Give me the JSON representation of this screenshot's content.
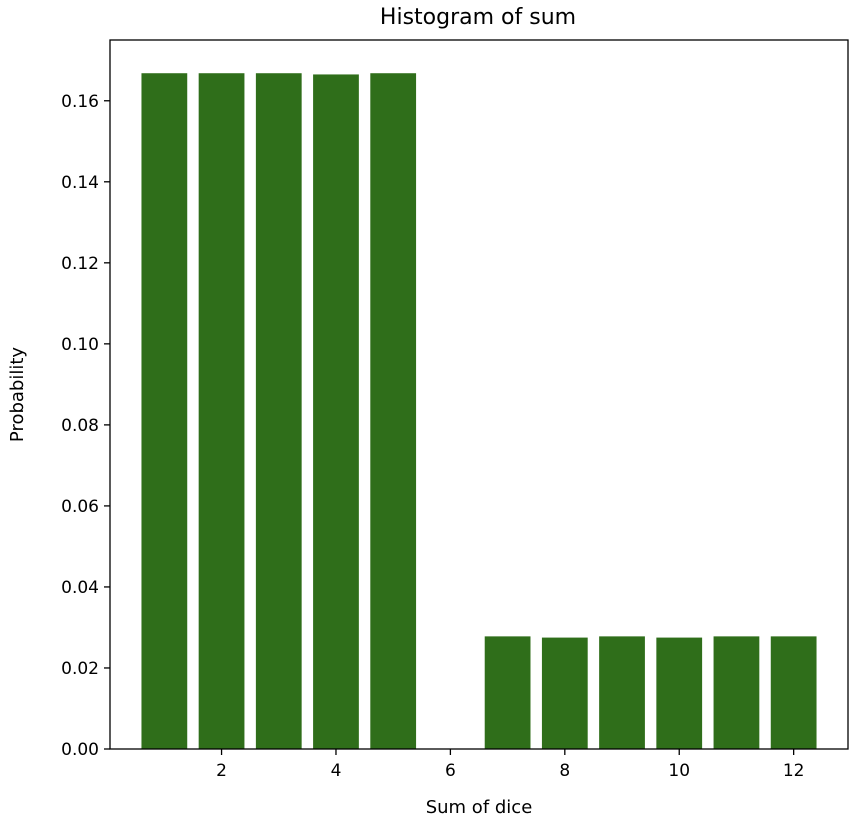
{
  "chart_data": {
    "type": "bar",
    "title": "Histogram of sum",
    "xlabel": "Sum of dice",
    "ylabel": "Probability",
    "x": [
      1,
      2,
      3,
      4,
      5,
      6,
      7,
      8,
      9,
      10,
      11,
      12
    ],
    "values": [
      0.1668,
      0.1668,
      0.1668,
      0.1665,
      0.1668,
      0.0,
      0.0278,
      0.0275,
      0.0278,
      0.0275,
      0.0278,
      0.0278
    ],
    "xlim": [
      0.05,
      12.95
    ],
    "ylim": [
      0.0,
      0.175
    ],
    "xticks": [
      2,
      4,
      6,
      8,
      10,
      12
    ],
    "yticks": [
      0.0,
      0.02,
      0.04,
      0.06,
      0.08,
      0.1,
      0.12,
      0.14,
      0.16
    ],
    "xtick_labels": [
      "2",
      "4",
      "6",
      "8",
      "10",
      "12"
    ],
    "ytick_labels": [
      "0.00",
      "0.02",
      "0.04",
      "0.06",
      "0.08",
      "0.10",
      "0.12",
      "0.14",
      "0.16"
    ],
    "bar_color": "#2f6e1a",
    "grid": false,
    "legend": "none"
  }
}
